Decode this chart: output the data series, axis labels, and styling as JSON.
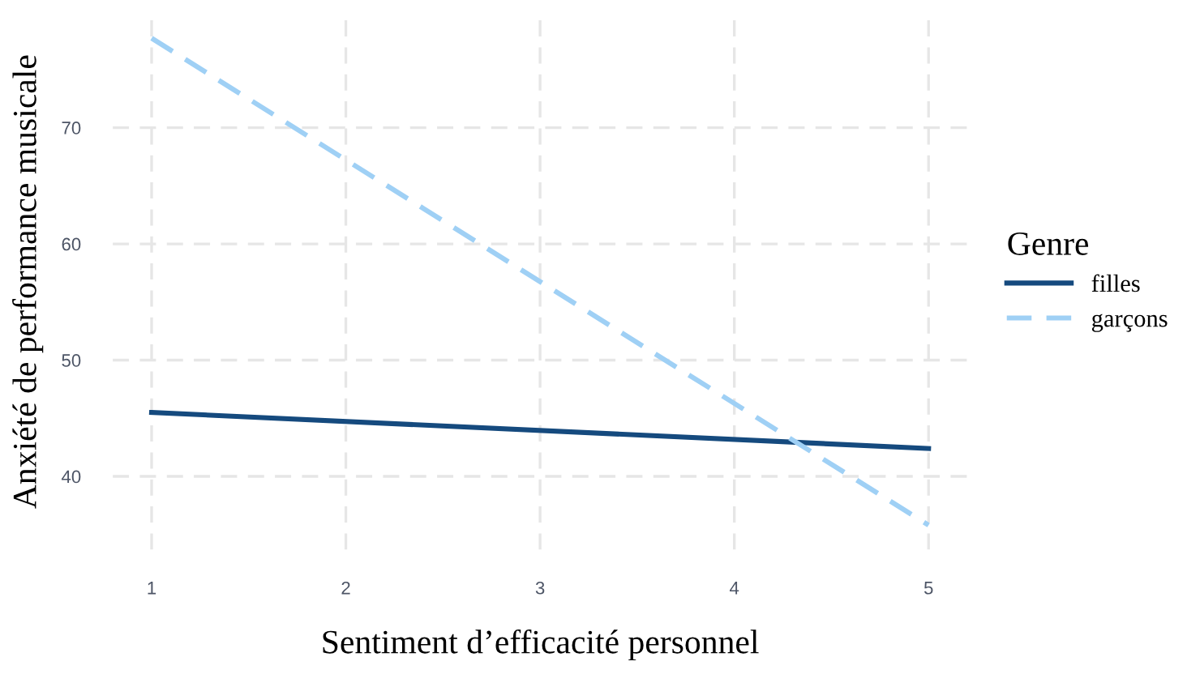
{
  "chart_data": {
    "type": "line",
    "xlabel": "Sentiment d’efficacité personnel",
    "ylabel": "Anxiété de performance musicale",
    "legend_title": "Genre",
    "x": [
      1,
      5
    ],
    "series": [
      {
        "name": "filles",
        "color": "#154a7e",
        "values": [
          45.5,
          42.4
        ],
        "line_style": "solid"
      },
      {
        "name": "garçons",
        "color": "#9fd0f5",
        "values": [
          77.7,
          35.8
        ],
        "line_style": "dashed"
      }
    ],
    "xlim": [
      0.8,
      5.2
    ],
    "ylim": [
      33.7,
      79.8
    ],
    "xticks": [
      1,
      2,
      3,
      4,
      5
    ],
    "yticks": [
      40,
      50,
      60,
      70
    ],
    "grid": true,
    "legend": "right",
    "marker": "none"
  }
}
